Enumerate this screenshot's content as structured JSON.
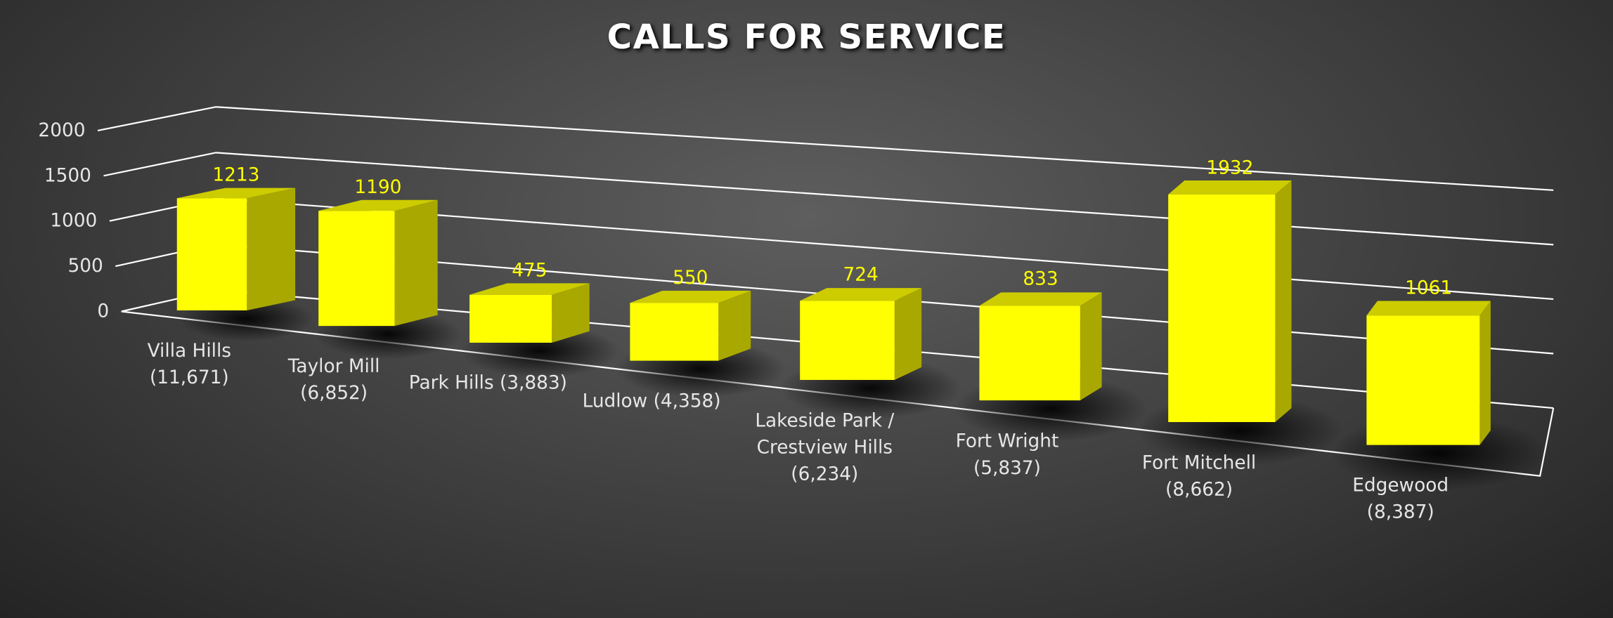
{
  "chart_data": {
    "type": "bar3d",
    "title": "CALLS FOR SERVICE",
    "categories": [
      "Villa Hills\n(11,671)",
      "Taylor Mill\n(6,852)",
      "Park Hills (3,883)",
      "Ludlow (4,358)",
      "Lakeside Park /\nCrestview Hills\n(6,234)",
      "Fort Wright\n(5,837)",
      "Fort Mitchell\n(8,662)",
      "Edgewood\n(8,387)"
    ],
    "values": [
      1213,
      1190,
      475,
      550,
      724,
      833,
      1932,
      1061
    ],
    "color": "#ffff00",
    "ylim": [
      0,
      2000
    ],
    "yticks": [
      0,
      500,
      1000,
      1500,
      2000
    ],
    "grid": true
  }
}
